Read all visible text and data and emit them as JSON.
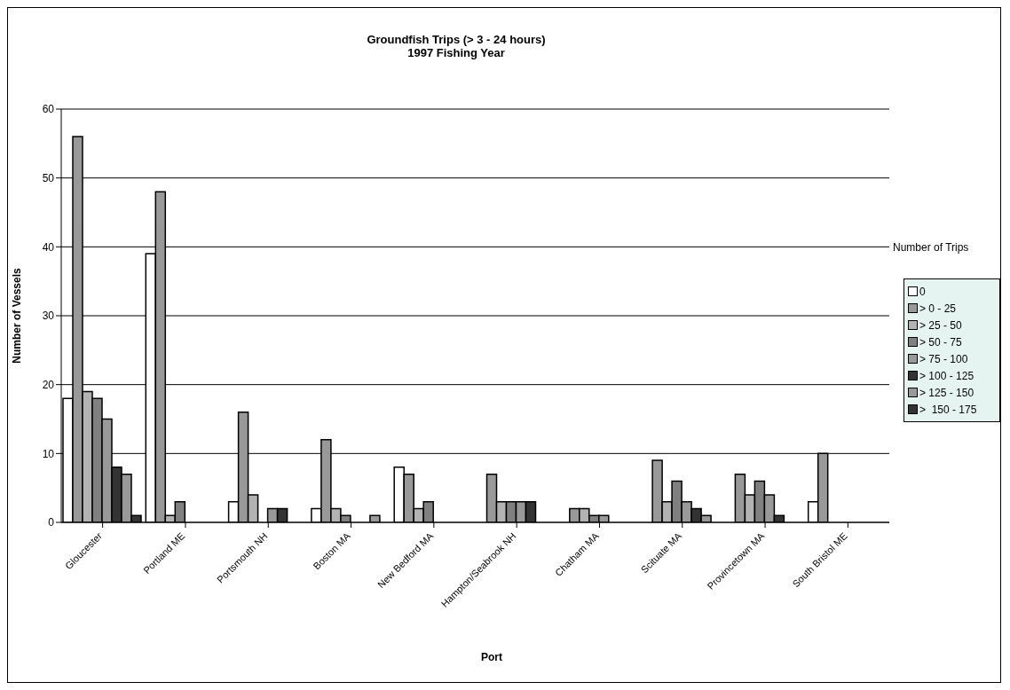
{
  "chart_data": {
    "type": "bar",
    "title": "Groundfish Trips (> 3 - 24 hours)",
    "subtitle": "1997 Fishing Year",
    "xlabel": "Port",
    "ylabel": "Number of Vessels",
    "legend_title": "Number of Trips",
    "categories": [
      "Gloucester",
      "Portland ME",
      "Portsmouth NH",
      "Boston MA",
      "New Bedford MA",
      "Hampton/Seabrook NH",
      "Chatham MA",
      "Scituate MA",
      "Provincetown MA",
      "South Bristol ME"
    ],
    "series": [
      {
        "name": "0",
        "color": "#ffffff",
        "values": [
          18,
          39,
          3,
          2,
          8,
          null,
          null,
          null,
          null,
          3
        ]
      },
      {
        "name": "> 0 - 25",
        "color": "#999999",
        "values": [
          56,
          48,
          16,
          12,
          7,
          7,
          2,
          9,
          7,
          10
        ]
      },
      {
        "name": "> 25 - 50",
        "color": "#b3b3b3",
        "values": [
          19,
          1,
          4,
          2,
          2,
          3,
          2,
          3,
          4,
          null
        ]
      },
      {
        "name": "> 50 - 75",
        "color": "#808080",
        "values": [
          18,
          3,
          null,
          1,
          3,
          3,
          1,
          6,
          6,
          null
        ]
      },
      {
        "name": "> 75 - 100",
        "color": "#999999",
        "values": [
          15,
          null,
          2,
          null,
          null,
          3,
          1,
          3,
          4,
          null
        ]
      },
      {
        "name": "> 100 - 125",
        "color": "#333333",
        "values": [
          8,
          null,
          2,
          null,
          null,
          3,
          null,
          2,
          1,
          null
        ]
      },
      {
        "name": "> 125 - 150",
        "color": "#999999",
        "values": [
          7,
          null,
          null,
          1,
          null,
          null,
          null,
          1,
          null,
          null
        ]
      },
      {
        "name": ">  150 - 175",
        "color": "#333333",
        "values": [
          1,
          null,
          null,
          null,
          null,
          null,
          null,
          null,
          null,
          null
        ]
      }
    ],
    "ylim": [
      0,
      60
    ],
    "yticks": [
      0,
      10,
      20,
      30,
      40,
      50,
      60
    ],
    "grid": "y",
    "legend": "right"
  }
}
